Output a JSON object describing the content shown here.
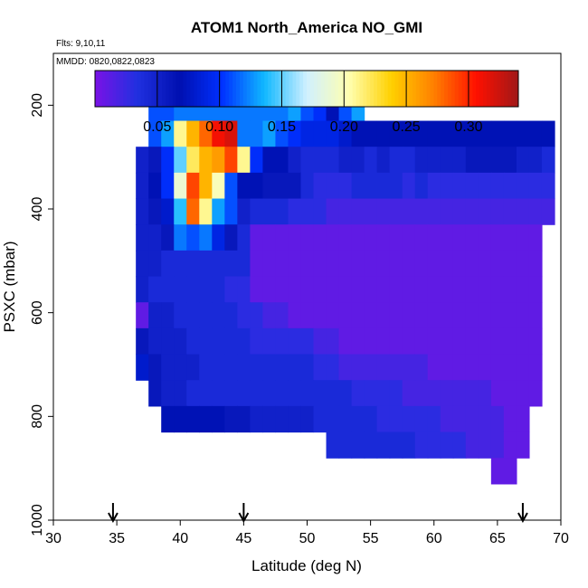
{
  "chart_data": {
    "type": "heatmap",
    "title": "ATOM1 North_America NO_GMI",
    "subtitle_lines": [
      "Flts: 9,10,11",
      "MMDD: 0820,0822,0823"
    ],
    "xlabel": "Latitude (deg N)",
    "ylabel": "PSXC (mbar)",
    "xlim": [
      30,
      70
    ],
    "ylim": [
      1000,
      100
    ],
    "y_inverted": true,
    "x_ticks": [
      30,
      35,
      40,
      45,
      50,
      55,
      60,
      65,
      70
    ],
    "y_ticks": [
      200,
      400,
      600,
      800,
      1000
    ],
    "colorbar": {
      "range": [
        0,
        0.34
      ],
      "tick_values": [
        0.05,
        0.1,
        0.15,
        0.2,
        0.25,
        0.3
      ],
      "tick_labels": [
        "0.05",
        "0.10",
        "0.15",
        "0.20",
        "0.25",
        "0.30"
      ],
      "colors": [
        "#7a12e6",
        "#2030e0",
        "#0010b0",
        "#0030ff",
        "#10b8ff",
        "#d0f0ff",
        "#ffffb0",
        "#ffd000",
        "#ff8000",
        "#ff1000",
        "#a01818"
      ]
    },
    "flight_markers_lat": [
      34.7,
      45,
      67
    ],
    "grid": {
      "lat_start": 36.5,
      "lat_step": 1,
      "p_start": 180,
      "p_step": 50,
      "rows": [
        [
          null,
          0.11,
          0.11,
          0.12,
          0.12,
          0.12,
          0.12,
          0.12,
          0.12,
          0.12,
          0.12,
          0.12,
          0.13,
          0.11,
          0.1,
          0.07,
          0.11,
          0.13,
          null,
          null,
          null,
          null,
          null,
          null,
          null,
          null,
          null,
          null,
          null,
          null,
          null,
          null,
          null
        ],
        [
          null,
          0.11,
          0.13,
          0.21,
          0.25,
          0.28,
          0.31,
          0.32,
          0.12,
          0.12,
          0.13,
          0.11,
          0.1,
          0.09,
          0.09,
          0.09,
          0.08,
          0.07,
          0.07,
          0.07,
          0.07,
          0.07,
          0.07,
          0.07,
          0.07,
          0.07,
          0.07,
          0.07,
          0.07,
          0.07,
          0.07,
          0.07,
          0.07
        ],
        [
          0.05,
          0.06,
          0.1,
          0.15,
          0.22,
          0.25,
          0.26,
          0.29,
          0.21,
          0.1,
          0.07,
          0.07,
          0.05,
          0.04,
          0.04,
          0.04,
          0.05,
          0.05,
          0.04,
          0.05,
          0.04,
          0.04,
          0.05,
          0.05,
          0.05,
          0.05,
          0.06,
          0.06,
          0.06,
          0.06,
          0.05,
          0.05,
          0.04
        ],
        [
          0.05,
          0.07,
          0.1,
          0.19,
          0.29,
          0.25,
          0.2,
          0.11,
          0.07,
          0.07,
          0.06,
          0.06,
          0.06,
          0.04,
          0.03,
          0.03,
          0.03,
          0.04,
          0.04,
          0.04,
          0.04,
          0.03,
          0.04,
          0.03,
          0.03,
          0.03,
          0.03,
          0.03,
          0.03,
          0.03,
          0.03,
          0.03,
          0.03
        ],
        [
          0.05,
          0.06,
          0.08,
          0.14,
          0.28,
          0.21,
          0.13,
          0.11,
          0.05,
          0.04,
          0.04,
          0.04,
          0.03,
          0.03,
          0.03,
          0.02,
          0.02,
          0.02,
          0.02,
          0.02,
          0.02,
          0.02,
          0.02,
          0.02,
          0.02,
          0.02,
          0.02,
          0.02,
          0.02,
          0.02,
          0.02,
          0.02,
          0.02
        ],
        [
          0.05,
          0.05,
          0.06,
          0.12,
          0.11,
          0.12,
          0.09,
          0.06,
          0.04,
          0.01,
          0.01,
          0.01,
          0.01,
          0.01,
          0.01,
          0.01,
          0.01,
          0.01,
          0.01,
          0.01,
          0.01,
          0.01,
          0.01,
          0.01,
          0.01,
          0.01,
          0.01,
          0.01,
          0.01,
          0.01,
          0.01,
          0.01,
          null
        ],
        [
          0.05,
          0.05,
          0.04,
          0.04,
          0.04,
          0.04,
          0.04,
          0.04,
          0.04,
          0.01,
          0.01,
          0.01,
          0.01,
          0.01,
          0.01,
          0.01,
          0.01,
          0.01,
          0.01,
          0.01,
          0.01,
          0.01,
          0.01,
          0.01,
          0.01,
          0.01,
          0.01,
          0.01,
          0.01,
          0.01,
          0.01,
          0.01,
          null
        ],
        [
          0.05,
          0.04,
          0.04,
          0.04,
          0.04,
          0.04,
          0.04,
          0.03,
          0.03,
          0.01,
          0.01,
          0.01,
          0.01,
          0.01,
          0.01,
          0.01,
          0.01,
          0.01,
          0.01,
          0.01,
          0.01,
          0.01,
          0.01,
          0.01,
          0.01,
          0.01,
          0.01,
          0.01,
          0.01,
          0.01,
          0.01,
          0.01,
          null
        ],
        [
          0.01,
          0.05,
          0.05,
          0.04,
          0.04,
          0.04,
          0.04,
          0.04,
          0.03,
          0.03,
          0.02,
          0.02,
          0.01,
          0.01,
          0.01,
          0.01,
          0.01,
          0.01,
          0.01,
          0.01,
          0.01,
          0.01,
          0.01,
          0.01,
          0.01,
          0.01,
          0.01,
          0.01,
          0.01,
          0.01,
          0.01,
          0.01,
          null
        ],
        [
          0.06,
          0.05,
          0.05,
          0.05,
          0.04,
          0.04,
          0.04,
          0.04,
          0.04,
          0.03,
          0.03,
          0.03,
          0.03,
          0.03,
          0.02,
          0.02,
          0.01,
          0.01,
          0.01,
          0.01,
          0.01,
          0.01,
          0.01,
          0.01,
          0.01,
          0.01,
          0.01,
          0.01,
          0.01,
          0.01,
          0.01,
          0.01,
          null
        ],
        [
          0.08,
          0.06,
          0.05,
          0.05,
          0.05,
          0.04,
          0.04,
          0.04,
          0.04,
          0.04,
          0.04,
          0.04,
          0.04,
          0.04,
          0.03,
          0.03,
          0.02,
          0.02,
          0.02,
          0.02,
          0.02,
          0.02,
          0.02,
          0.01,
          0.01,
          0.01,
          0.01,
          0.01,
          0.01,
          0.01,
          0.01,
          0.01,
          null
        ],
        [
          null,
          0.06,
          0.05,
          0.05,
          0.04,
          0.04,
          0.04,
          0.04,
          0.04,
          0.04,
          0.04,
          0.04,
          0.04,
          0.04,
          0.04,
          0.04,
          0.04,
          0.03,
          0.03,
          0.03,
          0.03,
          0.02,
          0.02,
          0.02,
          0.02,
          0.02,
          0.02,
          0.02,
          0.01,
          0.01,
          0.01,
          0.01,
          null
        ],
        [
          null,
          null,
          0.07,
          0.07,
          0.07,
          0.07,
          0.07,
          0.06,
          0.06,
          0.05,
          0.05,
          0.05,
          0.05,
          0.05,
          0.04,
          0.04,
          0.04,
          0.04,
          0.04,
          0.03,
          0.03,
          0.03,
          0.03,
          0.03,
          0.02,
          0.02,
          0.02,
          0.02,
          0.02,
          0.01,
          0.01,
          null,
          null
        ],
        [
          null,
          null,
          null,
          null,
          null,
          null,
          null,
          null,
          null,
          null,
          null,
          null,
          null,
          null,
          null,
          0.04,
          0.04,
          0.04,
          0.04,
          0.04,
          0.04,
          0.04,
          0.03,
          0.03,
          0.03,
          0.03,
          0.02,
          0.02,
          0.02,
          0.01,
          0.01,
          null,
          null
        ],
        [
          null,
          null,
          null,
          null,
          null,
          null,
          null,
          null,
          null,
          null,
          null,
          null,
          null,
          null,
          null,
          null,
          null,
          null,
          null,
          null,
          null,
          null,
          null,
          null,
          null,
          null,
          null,
          null,
          0.01,
          0.01,
          null,
          null,
          null
        ]
      ]
    }
  }
}
